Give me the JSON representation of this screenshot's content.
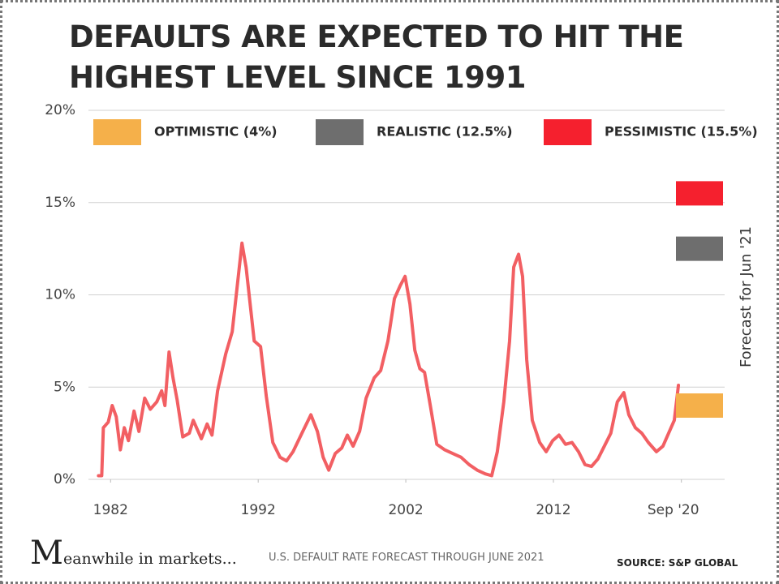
{
  "chart_data": {
    "type": "line",
    "title": "DEFAULTS ARE EXPECTED TO HIT THE HIGHEST LEVEL SINCE 1991",
    "subtitle": "U.S. DEFAULT RATE FORECAST THROUGH JUNE 2021",
    "source": "SOURCE:  S&P GLOBAL",
    "brand": "Meanwhile in markets...",
    "forecast_label": "Forecast for Jun '21",
    "xlim": [
      1980.5,
      2023.6
    ],
    "xticks": [
      1982,
      1992,
      2002,
      2012,
      {
        "value": 2020.67,
        "label": "Sep '20"
      }
    ],
    "ylim": [
      0,
      20
    ],
    "yticks": [
      {
        "value": 0,
        "label": "0%"
      },
      {
        "value": 5,
        "label": "5%"
      },
      {
        "value": 10,
        "label": "10%"
      },
      {
        "value": 15,
        "label": "15%"
      },
      {
        "value": 20,
        "label": "20%"
      }
    ],
    "grid": true,
    "series": [
      {
        "name": "U.S. default rate",
        "color": "#f25f63",
        "x": [
          1981.18,
          1981.4,
          1981.51,
          1981.84,
          1982.11,
          1982.38,
          1982.66,
          1982.93,
          1983.21,
          1983.59,
          1983.92,
          1984.31,
          1984.69,
          1985.13,
          1985.46,
          1985.68,
          1985.96,
          1986.23,
          1986.51,
          1986.89,
          1987.33,
          1987.6,
          1988.15,
          1988.54,
          1988.87,
          1989.25,
          1989.8,
          1990.24,
          1990.9,
          1991.18,
          1991.73,
          1992.16,
          1992.55,
          1992.99,
          1993.48,
          1993.92,
          1994.36,
          1995.02,
          1995.57,
          1996.01,
          1996.4,
          1996.78,
          1997.22,
          1997.66,
          1998.04,
          1998.43,
          1998.87,
          1999.31,
          1999.86,
          2000.3,
          2000.79,
          2001.23,
          2001.62,
          2001.95,
          2002.28,
          2002.61,
          2002.95,
          2003.27,
          2003.66,
          2004.1,
          2004.64,
          2005.19,
          2005.74,
          2006.29,
          2006.84,
          2007.38,
          2007.82,
          2008.2,
          2008.64,
          2009.03,
          2009.31,
          2009.64,
          2009.91,
          2010.19,
          2010.57,
          2011.07,
          2011.51,
          2011.95,
          2012.38,
          2012.82,
          2013.26,
          2013.7,
          2014.14,
          2014.58,
          2015.01,
          2015.45,
          2015.89,
          2016.33,
          2016.77,
          2017.11,
          2017.55,
          2017.99,
          2018.43,
          2018.98,
          2019.42,
          2019.86,
          2020.19,
          2020.47
        ],
        "values": [
          0.2,
          0.2,
          2.8,
          3.1,
          4.0,
          3.4,
          1.6,
          2.8,
          2.1,
          3.7,
          2.6,
          4.4,
          3.8,
          4.2,
          4.8,
          4.0,
          6.9,
          5.5,
          4.3,
          2.3,
          2.5,
          3.2,
          2.2,
          3.0,
          2.4,
          4.8,
          6.8,
          8.0,
          12.8,
          11.5,
          7.5,
          7.2,
          4.5,
          2.0,
          1.2,
          1.0,
          1.5,
          2.6,
          3.5,
          2.6,
          1.2,
          0.5,
          1.4,
          1.7,
          2.4,
          1.8,
          2.6,
          4.4,
          5.5,
          5.9,
          7.5,
          9.8,
          10.5,
          11.0,
          9.5,
          7.0,
          6.0,
          5.8,
          4.0,
          1.9,
          1.6,
          1.4,
          1.2,
          0.8,
          0.5,
          0.3,
          0.2,
          1.5,
          4.2,
          7.5,
          11.5,
          12.2,
          11.0,
          6.5,
          3.2,
          2.0,
          1.5,
          2.1,
          2.4,
          1.9,
          2.0,
          1.5,
          0.8,
          0.7,
          1.1,
          1.8,
          2.5,
          4.2,
          4.7,
          3.5,
          2.8,
          2.5,
          2.0,
          1.5,
          1.8,
          2.6,
          3.2,
          5.1
        ]
      }
    ],
    "scenarios": [
      {
        "name": "OPTIMISTIC (4%)",
        "value": 4,
        "color": "#f5b04a"
      },
      {
        "name": "REALISTIC (12.5%)",
        "value": 12.5,
        "color": "#6e6e6e"
      },
      {
        "name": "PESSIMISTIC (15.5%)",
        "value": 15.5,
        "color": "#f5202e"
      }
    ]
  }
}
